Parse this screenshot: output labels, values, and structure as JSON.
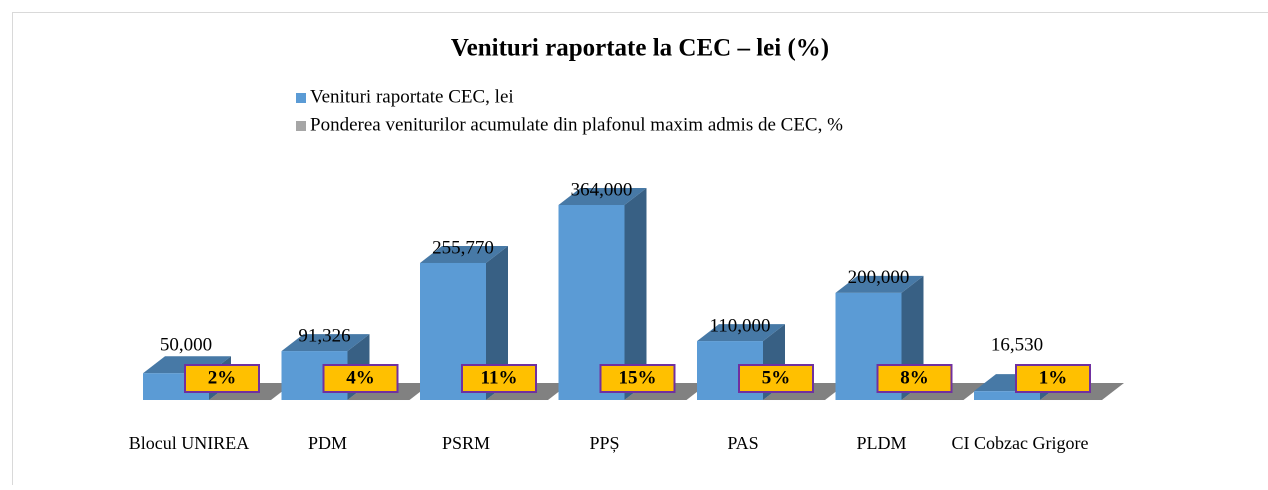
{
  "chart_data": {
    "type": "bar3d",
    "title": "Venituri raportate la CEC – lei (%)",
    "categories": [
      "Blocul UNIREA",
      "PDM",
      "PSRM",
      "PPȘ",
      "PAS",
      "PLDM",
      "CI Cobzac Grigore"
    ],
    "series": [
      {
        "name": "Venituri raportate CEC, lei",
        "color": "#5b9bd5",
        "values": [
          50000,
          91326,
          255770,
          364000,
          110000,
          200000,
          16530
        ],
        "value_labels": [
          "50,000",
          "91,326",
          "255,770",
          "364,000",
          "110,000",
          "200,000",
          "16,530"
        ]
      },
      {
        "name": "Ponderea veniturilor acumulate din plafonul maxim admis de CEC, %",
        "color": "#a6a6a6",
        "values": [
          2,
          4,
          11,
          15,
          5,
          8,
          1
        ],
        "value_labels": [
          "2%",
          "4%",
          "11%",
          "15%",
          "5%",
          "8%",
          "1%"
        ]
      }
    ]
  }
}
